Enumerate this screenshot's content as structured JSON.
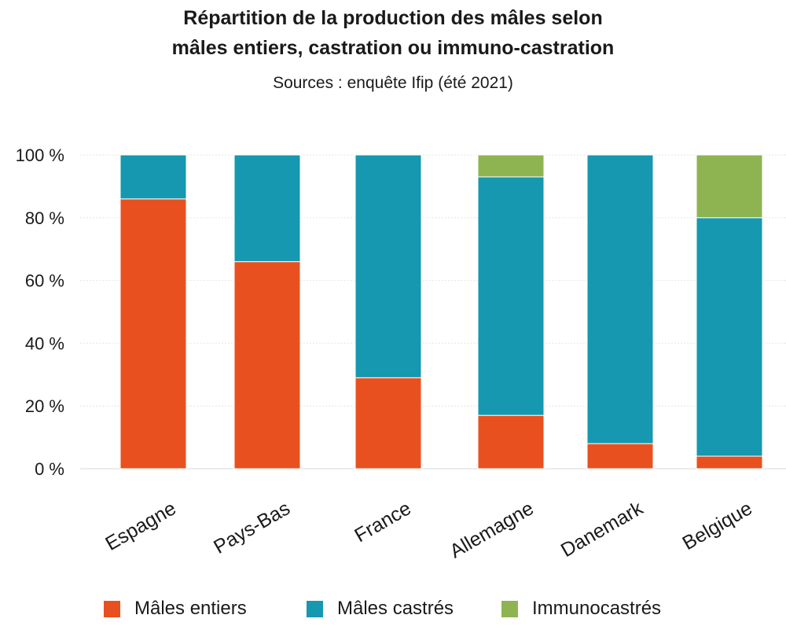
{
  "chart_data": {
    "type": "bar",
    "stacked": true,
    "title_lines": [
      "Répartition de la production des mâles selon",
      "mâles entiers, castration ou immuno-castration"
    ],
    "subtitle": "Sources : enquête Ifip (été 2021)",
    "categories": [
      "Espagne",
      "Pays-Bas",
      "France",
      "Allemagne",
      "Danemark",
      "Belgique"
    ],
    "series": [
      {
        "name": "Mâles entiers",
        "color": "#e8511f",
        "values": [
          86,
          66,
          29,
          17,
          8,
          4
        ]
      },
      {
        "name": "Mâles castrés",
        "color": "#1598b0",
        "values": [
          14,
          34,
          71,
          76,
          92,
          76
        ]
      },
      {
        "name": "Immunocastrés",
        "color": "#8db451",
        "values": [
          0,
          0,
          0,
          7,
          0,
          20
        ]
      }
    ],
    "yticks": [
      "0 %",
      "20 %",
      "40 %",
      "60 %",
      "80 %",
      "100 %"
    ],
    "ylim": [
      0,
      100
    ],
    "grid": true,
    "legend_position": "bottom"
  }
}
